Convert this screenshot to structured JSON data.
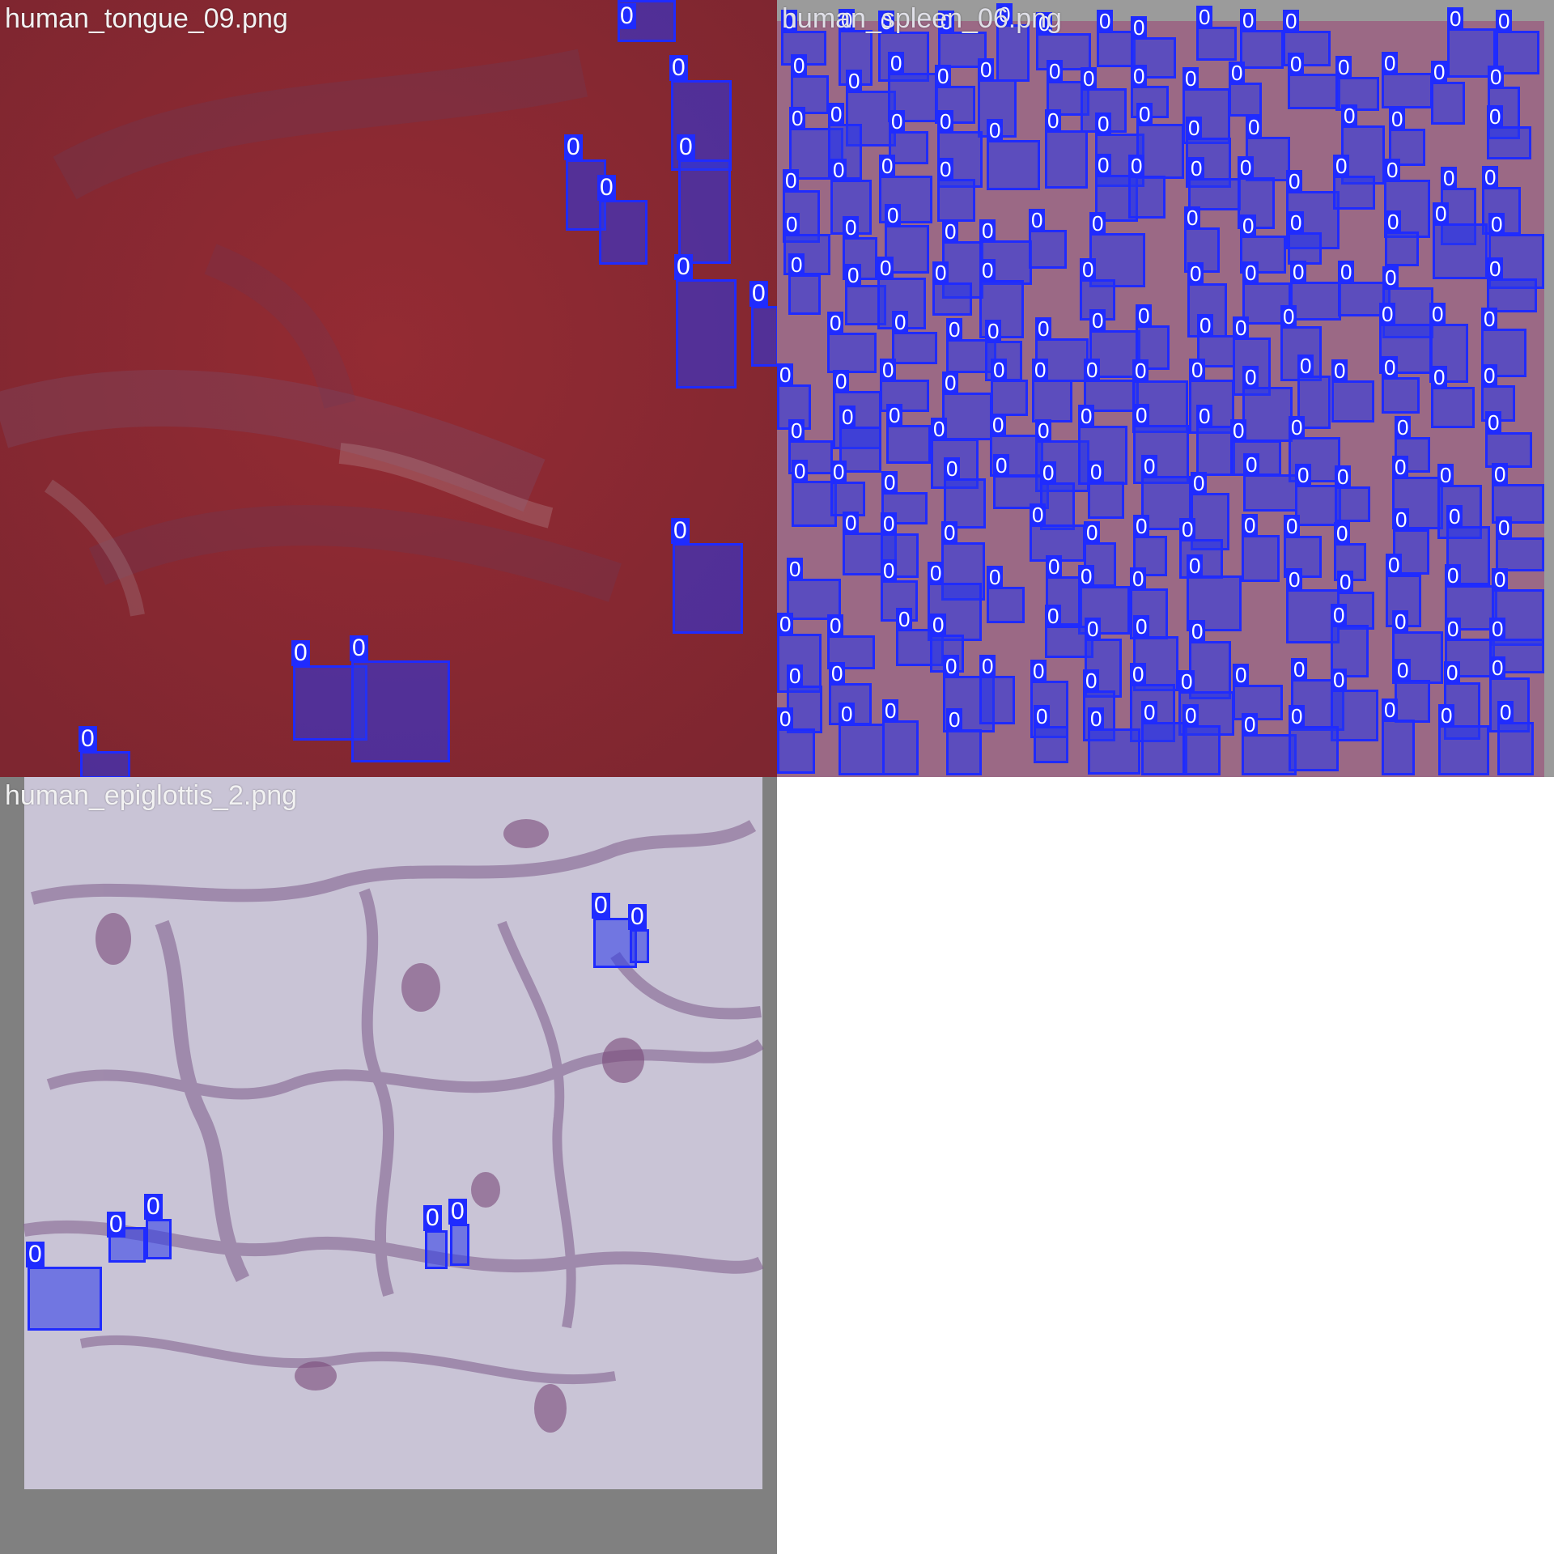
{
  "panels": [
    {
      "title": "human_tongue_09.png",
      "class_label": "0"
    },
    {
      "title": "human_spleen_06.png",
      "class_label": "0"
    },
    {
      "title": "human_epiglottis_2.png",
      "class_label": "0"
    }
  ],
  "colors": {
    "detection_blue": "#1f2bff",
    "tongue_tissue": "#8e2a33",
    "spleen_tissue": "#a5708a",
    "epiglottis_tissue": "#c9c4d6",
    "padding_gray": "#8a8a8a"
  }
}
